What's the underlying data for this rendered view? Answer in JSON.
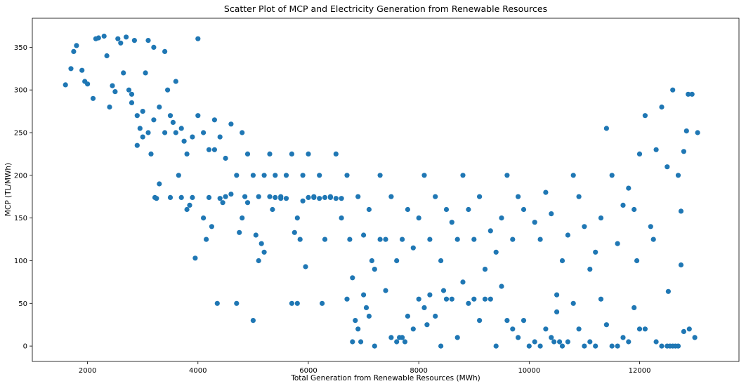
{
  "chart_data": {
    "type": "scatter",
    "title": "Scatter Plot of MCP and Electricity Generation from Renewable Resources",
    "xlabel": "Total Generation from Renewable Resources (MWh)",
    "ylabel": "MCP (TL/MWh)",
    "xlim": [
      1000,
      13800
    ],
    "ylim": [
      -18,
      384
    ],
    "xticks": [
      2000,
      4000,
      6000,
      8000,
      10000,
      12000
    ],
    "yticks": [
      0,
      50,
      100,
      150,
      200,
      250,
      300,
      350
    ],
    "grid": false,
    "marker_color": "#1f77b4",
    "series": [
      {
        "points": [
          [
            1600,
            306
          ],
          [
            1700,
            325
          ],
          [
            1750,
            345
          ],
          [
            1800,
            352
          ],
          [
            1900,
            323
          ],
          [
            1950,
            310
          ],
          [
            2000,
            307
          ],
          [
            2100,
            290
          ],
          [
            2150,
            360
          ],
          [
            2200,
            361
          ],
          [
            2300,
            363
          ],
          [
            2350,
            340
          ],
          [
            2400,
            280
          ],
          [
            2450,
            305
          ],
          [
            2500,
            298
          ],
          [
            2550,
            360
          ],
          [
            2600,
            355
          ],
          [
            2650,
            320
          ],
          [
            2700,
            362
          ],
          [
            2750,
            300
          ],
          [
            2800,
            285
          ],
          [
            2850,
            358
          ],
          [
            2900,
            235
          ],
          [
            2950,
            255
          ],
          [
            3000,
            245
          ],
          [
            3050,
            320
          ],
          [
            3100,
            358
          ],
          [
            3150,
            225
          ],
          [
            3200,
            350
          ],
          [
            3220,
            174
          ],
          [
            3250,
            173
          ],
          [
            3300,
            190
          ],
          [
            3400,
            345
          ],
          [
            3450,
            300
          ],
          [
            3500,
            174
          ],
          [
            3550,
            262
          ],
          [
            3600,
            310
          ],
          [
            3650,
            200
          ],
          [
            3700,
            174
          ],
          [
            3750,
            240
          ],
          [
            3800,
            160
          ],
          [
            3850,
            165
          ],
          [
            3900,
            174
          ],
          [
            3950,
            103
          ],
          [
            4000,
            360
          ],
          [
            4100,
            150
          ],
          [
            4150,
            125
          ],
          [
            4200,
            174
          ],
          [
            4250,
            140
          ],
          [
            4300,
            230
          ],
          [
            4350,
            50
          ],
          [
            4400,
            173
          ],
          [
            4450,
            168
          ],
          [
            4500,
            175
          ],
          [
            4600,
            178
          ],
          [
            4700,
            50
          ],
          [
            4750,
            133
          ],
          [
            4800,
            150
          ],
          [
            4850,
            175
          ],
          [
            4900,
            168
          ],
          [
            5000,
            30
          ],
          [
            5050,
            130
          ],
          [
            5100,
            100
          ],
          [
            5150,
            120
          ],
          [
            5200,
            110
          ],
          [
            5300,
            175
          ],
          [
            5350,
            160
          ],
          [
            5400,
            174
          ],
          [
            5500,
            173
          ],
          [
            5600,
            173
          ],
          [
            5700,
            50
          ],
          [
            5750,
            133
          ],
          [
            5800,
            50
          ],
          [
            5850,
            125
          ],
          [
            5900,
            170
          ],
          [
            5950,
            93
          ],
          [
            6000,
            174
          ],
          [
            6100,
            174
          ],
          [
            6200,
            173
          ],
          [
            6250,
            50
          ],
          [
            6300,
            174
          ],
          [
            6400,
            174
          ],
          [
            6500,
            173
          ],
          [
            6600,
            173
          ],
          [
            6700,
            55
          ],
          [
            6750,
            125
          ],
          [
            6800,
            5
          ],
          [
            6850,
            30
          ],
          [
            6900,
            20
          ],
          [
            6950,
            5
          ],
          [
            7000,
            60
          ],
          [
            7050,
            45
          ],
          [
            7100,
            35
          ],
          [
            7150,
            100
          ],
          [
            7200,
            0
          ],
          [
            7300,
            125
          ],
          [
            7400,
            65
          ],
          [
            7500,
            10
          ],
          [
            7600,
            5
          ],
          [
            7650,
            10
          ],
          [
            7700,
            10
          ],
          [
            7750,
            5
          ],
          [
            7800,
            35
          ],
          [
            7900,
            20
          ],
          [
            8000,
            55
          ],
          [
            8100,
            45
          ],
          [
            8150,
            25
          ],
          [
            8200,
            60
          ],
          [
            8300,
            35
          ],
          [
            8400,
            0
          ],
          [
            8450,
            65
          ],
          [
            8500,
            55
          ],
          [
            8600,
            55
          ],
          [
            8700,
            10
          ],
          [
            8800,
            75
          ],
          [
            8900,
            50
          ],
          [
            9000,
            55
          ],
          [
            9100,
            30
          ],
          [
            9200,
            55
          ],
          [
            9300,
            55
          ],
          [
            9400,
            0
          ],
          [
            9500,
            70
          ],
          [
            9600,
            30
          ],
          [
            9700,
            20
          ],
          [
            9800,
            10
          ],
          [
            9900,
            30
          ],
          [
            10000,
            0
          ],
          [
            10100,
            5
          ],
          [
            10200,
            0
          ],
          [
            10300,
            20
          ],
          [
            10400,
            10
          ],
          [
            10450,
            5
          ],
          [
            10500,
            40
          ],
          [
            10550,
            5
          ],
          [
            10600,
            0
          ],
          [
            10700,
            5
          ],
          [
            10800,
            50
          ],
          [
            10900,
            20
          ],
          [
            11000,
            0
          ],
          [
            11100,
            5
          ],
          [
            11200,
            0
          ],
          [
            11300,
            55
          ],
          [
            11400,
            25
          ],
          [
            11500,
            0
          ],
          [
            11600,
            0
          ],
          [
            11700,
            10
          ],
          [
            11800,
            5
          ],
          [
            11900,
            45
          ],
          [
            12000,
            20
          ],
          [
            12100,
            20
          ],
          [
            12300,
            5
          ],
          [
            12400,
            0
          ],
          [
            12500,
            0
          ],
          [
            12550,
            0
          ],
          [
            12600,
            0
          ],
          [
            12650,
            0
          ],
          [
            12700,
            0
          ],
          [
            12750,
            95
          ],
          [
            12800,
            17
          ],
          [
            12900,
            20
          ],
          [
            13000,
            10
          ],
          [
            12520,
            64
          ],
          [
            12880,
            295
          ],
          [
            12950,
            295
          ],
          [
            13050,
            250
          ],
          [
            12700,
            200
          ],
          [
            12750,
            158
          ],
          [
            12800,
            228
          ],
          [
            12850,
            252
          ],
          [
            12500,
            210
          ],
          [
            12600,
            300
          ],
          [
            12400,
            280
          ],
          [
            12300,
            230
          ],
          [
            12100,
            270
          ],
          [
            12000,
            225
          ],
          [
            11900,
            160
          ],
          [
            11800,
            185
          ],
          [
            11950,
            100
          ],
          [
            12200,
            140
          ],
          [
            12250,
            125
          ],
          [
            11700,
            165
          ],
          [
            11600,
            120
          ],
          [
            11500,
            200
          ],
          [
            11400,
            255
          ],
          [
            11300,
            150
          ],
          [
            11200,
            110
          ],
          [
            11100,
            90
          ],
          [
            11000,
            140
          ],
          [
            10900,
            175
          ],
          [
            10800,
            200
          ],
          [
            10700,
            130
          ],
          [
            10600,
            100
          ],
          [
            10500,
            60
          ],
          [
            10400,
            155
          ],
          [
            10300,
            180
          ],
          [
            10200,
            125
          ],
          [
            10100,
            145
          ],
          [
            9900,
            160
          ],
          [
            9800,
            175
          ],
          [
            9700,
            125
          ],
          [
            9600,
            200
          ],
          [
            9500,
            150
          ],
          [
            9400,
            110
          ],
          [
            9300,
            135
          ],
          [
            9200,
            90
          ],
          [
            9100,
            175
          ],
          [
            9000,
            125
          ],
          [
            8900,
            160
          ],
          [
            8800,
            200
          ],
          [
            8700,
            125
          ],
          [
            8600,
            145
          ],
          [
            8500,
            160
          ],
          [
            8400,
            100
          ],
          [
            8300,
            175
          ],
          [
            8200,
            125
          ],
          [
            8100,
            200
          ],
          [
            8000,
            150
          ],
          [
            7900,
            115
          ],
          [
            7800,
            160
          ],
          [
            7700,
            125
          ],
          [
            7600,
            100
          ],
          [
            7500,
            175
          ],
          [
            7400,
            125
          ],
          [
            7300,
            200
          ],
          [
            7200,
            90
          ],
          [
            7100,
            160
          ],
          [
            7000,
            130
          ],
          [
            6900,
            175
          ],
          [
            6800,
            80
          ],
          [
            6700,
            200
          ],
          [
            6600,
            150
          ],
          [
            6500,
            225
          ],
          [
            6400,
            175
          ],
          [
            6300,
            125
          ],
          [
            6200,
            200
          ],
          [
            6100,
            175
          ],
          [
            6000,
            225
          ],
          [
            5900,
            200
          ],
          [
            5800,
            150
          ],
          [
            5700,
            225
          ],
          [
            5600,
            200
          ],
          [
            5500,
            175
          ],
          [
            5400,
            200
          ],
          [
            5300,
            225
          ],
          [
            5200,
            200
          ],
          [
            5100,
            175
          ],
          [
            5000,
            200
          ],
          [
            4900,
            225
          ],
          [
            4800,
            250
          ],
          [
            4700,
            200
          ],
          [
            4600,
            260
          ],
          [
            4500,
            220
          ],
          [
            4400,
            245
          ],
          [
            4300,
            265
          ],
          [
            4200,
            230
          ],
          [
            4100,
            250
          ],
          [
            4000,
            270
          ],
          [
            3900,
            245
          ],
          [
            3800,
            225
          ],
          [
            3700,
            255
          ],
          [
            3600,
            250
          ],
          [
            3500,
            270
          ],
          [
            3400,
            250
          ],
          [
            3300,
            280
          ],
          [
            3200,
            265
          ],
          [
            3100,
            250
          ],
          [
            3000,
            275
          ],
          [
            2900,
            270
          ],
          [
            2800,
            295
          ]
        ]
      }
    ]
  }
}
